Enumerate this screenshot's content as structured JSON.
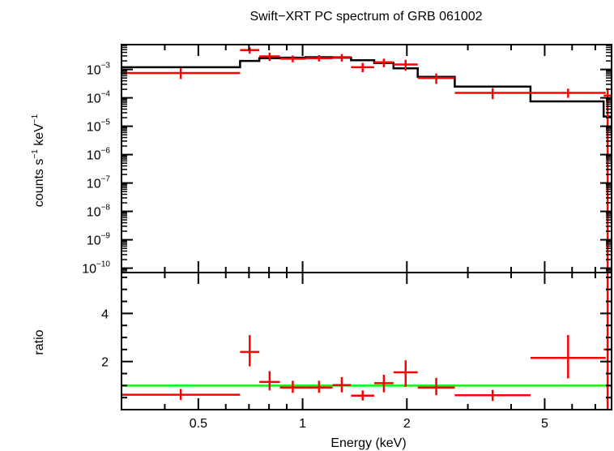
{
  "title": "Swift−XRT PC spectrum of GRB 061002",
  "chart_data": [
    {
      "type": "step-errorbar",
      "panel": "spectrum",
      "ylabel_parts": [
        "counts s",
        "−1",
        " keV",
        "−1"
      ],
      "yscale": "log",
      "xscale": "log",
      "xlim": [
        0.3,
        7.8
      ],
      "ylim": [
        7e-11,
        0.0075
      ],
      "yticks": [
        {
          "value": 0.001,
          "base": "10",
          "exp": "−3"
        },
        {
          "value": 0.0001,
          "base": "10",
          "exp": "−4"
        },
        {
          "value": 1e-05,
          "base": "10",
          "exp": "−5"
        },
        {
          "value": 1e-06,
          "base": "10",
          "exp": "−6"
        },
        {
          "value": 1e-07,
          "base": "10",
          "exp": "−7"
        },
        {
          "value": 1e-08,
          "base": "10",
          "exp": "−8"
        },
        {
          "value": 1e-09,
          "base": "10",
          "exp": "−9"
        },
        {
          "value": 1e-10,
          "base": "10",
          "exp": "−10"
        }
      ],
      "data": [
        {
          "xlo": 0.3,
          "xhi": 0.66,
          "y": 0.00075,
          "ylo": 0.00046,
          "yhi": 0.0011
        },
        {
          "xlo": 0.66,
          "xhi": 0.75,
          "y": 0.0048,
          "ylo": 0.0036,
          "yhi": 0.006
        },
        {
          "xlo": 0.75,
          "xhi": 0.86,
          "y": 0.0029,
          "ylo": 0.002,
          "yhi": 0.0039
        },
        {
          "xlo": 0.86,
          "xhi": 1.02,
          "y": 0.0024,
          "ylo": 0.0018,
          "yhi": 0.0031
        },
        {
          "xlo": 1.02,
          "xhi": 1.22,
          "y": 0.0025,
          "ylo": 0.0019,
          "yhi": 0.0032
        },
        {
          "xlo": 1.22,
          "xhi": 1.38,
          "y": 0.0027,
          "ylo": 0.0019,
          "yhi": 0.0035
        },
        {
          "xlo": 1.38,
          "xhi": 1.61,
          "y": 0.0012,
          "ylo": 0.0008,
          "yhi": 0.0017
        },
        {
          "xlo": 1.61,
          "xhi": 1.83,
          "y": 0.0018,
          "ylo": 0.0012,
          "yhi": 0.0024
        },
        {
          "xlo": 1.83,
          "xhi": 2.15,
          "y": 0.0015,
          "ylo": 0.0009,
          "yhi": 0.0022
        },
        {
          "xlo": 2.15,
          "xhi": 2.75,
          "y": 0.0005,
          "ylo": 0.00031,
          "yhi": 0.00072
        },
        {
          "xlo": 2.75,
          "xhi": 4.55,
          "y": 0.00015,
          "ylo": 9e-05,
          "yhi": 0.00022
        },
        {
          "xlo": 4.55,
          "xhi": 7.5,
          "y": 0.00015,
          "ylo": 0.0001,
          "yhi": 0.00021
        },
        {
          "xlo": 7.4,
          "xhi": 7.8,
          "y": 0.00012,
          "ylo": 7e-11,
          "yhi": 0.00022
        }
      ],
      "model": [
        {
          "xlo": 0.3,
          "xhi": 0.66,
          "y": 0.0012
        },
        {
          "xlo": 0.66,
          "xhi": 0.75,
          "y": 0.002
        },
        {
          "xlo": 0.75,
          "xhi": 0.86,
          "y": 0.0025
        },
        {
          "xlo": 0.86,
          "xhi": 1.02,
          "y": 0.0026
        },
        {
          "xlo": 1.02,
          "xhi": 1.22,
          "y": 0.0027
        },
        {
          "xlo": 1.22,
          "xhi": 1.38,
          "y": 0.0026
        },
        {
          "xlo": 1.38,
          "xhi": 1.61,
          "y": 0.0021
        },
        {
          "xlo": 1.61,
          "xhi": 1.83,
          "y": 0.0017
        },
        {
          "xlo": 1.83,
          "xhi": 2.15,
          "y": 0.0011
        },
        {
          "xlo": 2.15,
          "xhi": 2.75,
          "y": 0.00055
        },
        {
          "xlo": 2.75,
          "xhi": 4.55,
          "y": 0.00025
        },
        {
          "xlo": 4.55,
          "xhi": 7.4,
          "y": 7.5e-05
        },
        {
          "xlo": 7.4,
          "xhi": 7.8,
          "y": 2.2e-05
        }
      ]
    },
    {
      "type": "errorbar",
      "panel": "ratio",
      "ylabel": "ratio",
      "xlabel": "Energy (keV)",
      "xscale": "log",
      "yscale": "linear",
      "xlim": [
        0.3,
        7.8
      ],
      "ylim": [
        0.0,
        5.7
      ],
      "yticks": [
        {
          "value": 2,
          "label": "2"
        },
        {
          "value": 4,
          "label": "4"
        }
      ],
      "xticks": [
        {
          "value": 0.5,
          "label": "0.5"
        },
        {
          "value": 1,
          "label": "1"
        },
        {
          "value": 2,
          "label": "2"
        },
        {
          "value": 5,
          "label": "5"
        }
      ],
      "reference_line": 1.0,
      "data": [
        {
          "xlo": 0.3,
          "xhi": 0.66,
          "y": 0.62,
          "ylo": 0.4,
          "yhi": 0.86
        },
        {
          "xlo": 0.66,
          "xhi": 0.75,
          "y": 2.4,
          "ylo": 1.8,
          "yhi": 3.1
        },
        {
          "xlo": 0.75,
          "xhi": 0.86,
          "y": 1.15,
          "ylo": 0.8,
          "yhi": 1.6
        },
        {
          "xlo": 0.86,
          "xhi": 1.02,
          "y": 0.92,
          "ylo": 0.7,
          "yhi": 1.2
        },
        {
          "xlo": 1.02,
          "xhi": 1.22,
          "y": 0.92,
          "ylo": 0.7,
          "yhi": 1.2
        },
        {
          "xlo": 1.22,
          "xhi": 1.38,
          "y": 1.02,
          "ylo": 0.72,
          "yhi": 1.35
        },
        {
          "xlo": 1.38,
          "xhi": 1.61,
          "y": 0.58,
          "ylo": 0.38,
          "yhi": 0.8
        },
        {
          "xlo": 1.61,
          "xhi": 1.83,
          "y": 1.1,
          "ylo": 0.72,
          "yhi": 1.45
        },
        {
          "xlo": 1.83,
          "xhi": 2.15,
          "y": 1.55,
          "ylo": 0.95,
          "yhi": 2.05
        },
        {
          "xlo": 2.15,
          "xhi": 2.75,
          "y": 0.92,
          "ylo": 0.6,
          "yhi": 1.32
        },
        {
          "xlo": 2.75,
          "xhi": 4.55,
          "y": 0.6,
          "ylo": 0.36,
          "yhi": 0.82
        },
        {
          "xlo": 4.55,
          "xhi": 7.5,
          "y": 2.15,
          "ylo": 1.3,
          "yhi": 3.1
        },
        {
          "xlo": 7.4,
          "xhi": 7.8,
          "y": 2.5,
          "ylo": 0.0,
          "yhi": 5.7
        }
      ]
    }
  ],
  "colors": {
    "data": "#ff0000",
    "model": "#000000",
    "reference": "#00ff00",
    "axes": "#000000"
  }
}
